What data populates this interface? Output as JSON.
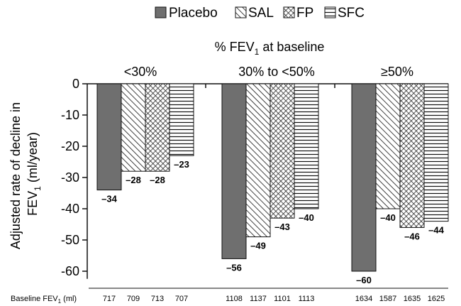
{
  "chart_data": {
    "type": "bar",
    "legend": {
      "placement": "top",
      "entries": [
        {
          "label": "Placebo",
          "pattern": "solid-gray"
        },
        {
          "label": "SAL",
          "pattern": "diagonal-hatch"
        },
        {
          "label": "FP",
          "pattern": "crosshatch"
        },
        {
          "label": "SFC",
          "pattern": "horizontal-lines"
        }
      ]
    },
    "group_axis_title": {
      "text": "% FEV",
      "sub": "1",
      "rest": " at baseline"
    },
    "groups": [
      "<30%",
      "30% to <50%",
      "≥50%"
    ],
    "series": [
      {
        "name": "Placebo",
        "values": [
          -34,
          -56,
          -60
        ]
      },
      {
        "name": "SAL",
        "values": [
          -28,
          -49,
          -40
        ]
      },
      {
        "name": "FP",
        "values": [
          -28,
          -43,
          -46
        ]
      },
      {
        "name": "SFC",
        "values": [
          -23,
          -40,
          -44
        ]
      }
    ],
    "data_labels": [
      [
        "–34",
        "–56",
        "–60"
      ],
      [
        "–28",
        "–49",
        "–40"
      ],
      [
        "–28",
        "–43",
        "–46"
      ],
      [
        "–23",
        "–40",
        "–44"
      ]
    ],
    "ylabel": {
      "line1": "Adjusted rate of decline in",
      "line2_pre": "FEV",
      "line2_sub": "1",
      "line2_post": " (ml/year)"
    },
    "ylim": [
      -62,
      0
    ],
    "yticks": [
      0,
      -10,
      -20,
      -30,
      -40,
      -50,
      -60
    ],
    "ytick_labels": [
      "0",
      "-10",
      "-20",
      "-30",
      "-40",
      "-50",
      "-60"
    ],
    "baseline_row": {
      "label_pre": "Baseline FEV",
      "label_sub": "1",
      "label_post": " (ml)",
      "values": [
        [
          "717",
          "709",
          "713",
          "707"
        ],
        [
          "1108",
          "1137",
          "1101",
          "1113"
        ],
        [
          "1634",
          "1587",
          "1635",
          "1625"
        ]
      ]
    },
    "colors": {
      "placebo": "#6f6f6f",
      "ink": "#111111"
    }
  }
}
